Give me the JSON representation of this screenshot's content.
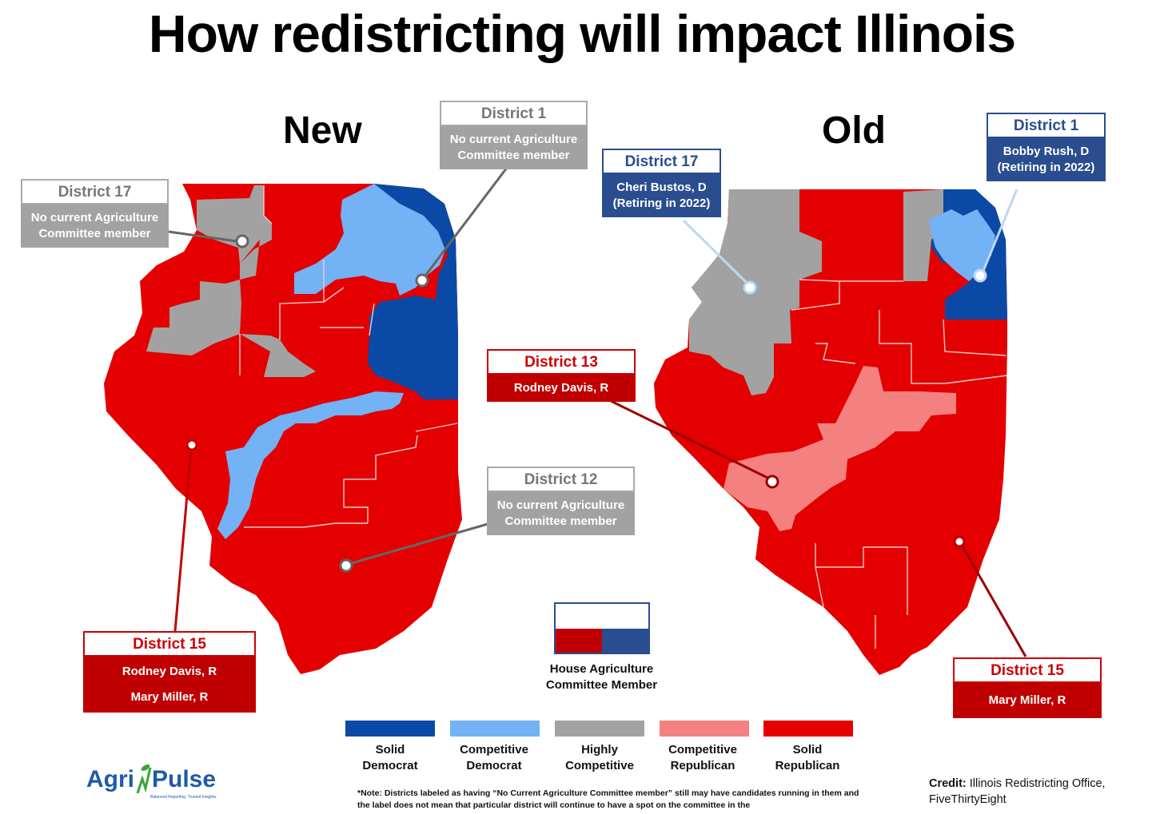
{
  "title": "How redistricting will impact Illinois",
  "maps": {
    "new_label": "New",
    "old_label": "Old"
  },
  "colors": {
    "solid_democrat": "#0a4aa6",
    "competitive_democrat": "#72b2f5",
    "highly_competitive": "#a2a2a2",
    "competitive_republican": "#f58080",
    "solid_republican": "#e40000",
    "committee_red": "#c00000",
    "committee_blue": "#2a4d8f"
  },
  "callouts": {
    "new_d17": {
      "heading": "District 17",
      "line1": "No current Agriculture",
      "line2": "Committee member"
    },
    "new_d1": {
      "heading": "District 1",
      "line1": "No current Agriculture",
      "line2": "Committee member"
    },
    "new_d12": {
      "heading": "District 12",
      "line1": "No current Agriculture",
      "line2": "Committee member"
    },
    "new_d15": {
      "heading": "District 15",
      "line1": "Rodney Davis, R",
      "line2": "Mary Miller, R"
    },
    "old_d17": {
      "heading": "District 17",
      "line1": "Cheri Bustos, D",
      "line2": "(Retiring in 2022)"
    },
    "old_d1": {
      "heading": "District 1",
      "line1": "Bobby Rush, D",
      "line2": "(Retiring in 2022)"
    },
    "old_d13": {
      "heading": "District 13",
      "line1": "Rodney Davis, R"
    },
    "old_d15": {
      "heading": "District 15",
      "line1": "Mary Miller, R"
    }
  },
  "legend": {
    "items": [
      {
        "line1": "Solid",
        "line2": "Democrat",
        "color": "#0a4aa6"
      },
      {
        "line1": "Competitive",
        "line2": "Democrat",
        "color": "#72b2f5"
      },
      {
        "line1": "Highly",
        "line2": "Competitive",
        "color": "#a2a2a2"
      },
      {
        "line1": "Competitive",
        "line2": "Republican",
        "color": "#f58080"
      },
      {
        "line1": "Solid",
        "line2": "Republican",
        "color": "#e40000"
      }
    ],
    "member_line1": "House Agriculture",
    "member_line2": "Committee Member"
  },
  "logo": {
    "part1": "Agri",
    "part2": "Pulse",
    "tagline": "Balanced Reporting. Trusted Insights."
  },
  "note": "*Note: Districts labeled as having “No Current Agriculture Committee member” still may have candidates running in them and the label does not mean that particular district will continue to have a spot on the committee in the",
  "credit": {
    "label": "Credit:",
    "text": "Illinois Redistricting Office, FiveThirtyEight"
  }
}
